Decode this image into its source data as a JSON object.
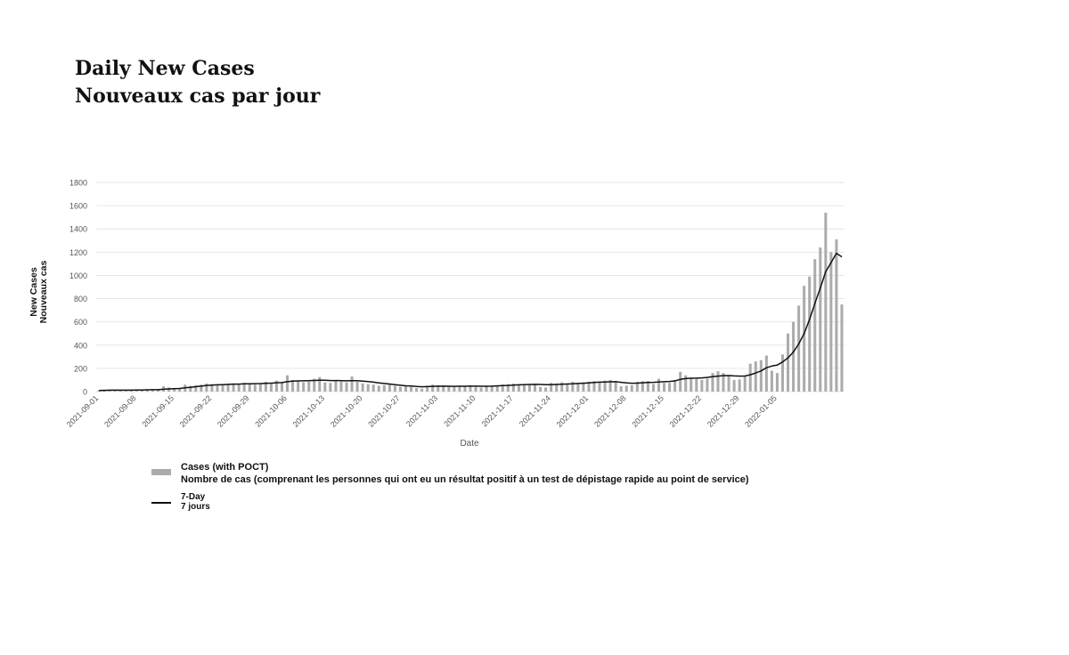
{
  "page": {
    "title_en": "Daily New Cases",
    "title_fr": "Nouveaux cas par jour"
  },
  "legend": {
    "cases_label_en": "Cases (with POCT)",
    "cases_label_fr": "Nombre de cas (comprenant les personnes qui ont eu un résultat positif à un test de dépistage rapide au point de service)",
    "avg_label_en": "7-Day",
    "avg_label_fr": "7 jours"
  },
  "colors": {
    "bars": "#ababab",
    "line": "#111111",
    "grid": "#e6e6e6",
    "text": "#555555"
  },
  "chart_data": {
    "type": "bar",
    "title": "Daily New Cases / Nouveaux cas par jour",
    "xlabel": "Date",
    "ylabel": [
      "New Cases",
      "Nouveaux cas"
    ],
    "ylim": [
      0,
      1800
    ],
    "yticks": [
      0,
      200,
      400,
      600,
      800,
      1000,
      1200,
      1400,
      1600,
      1800
    ],
    "grid": true,
    "legend_position": "bottom-left",
    "start_date": "2021-09-01",
    "xtick_labels": [
      "2021-09-01",
      "2021-09-08",
      "2021-09-15",
      "2021-09-22",
      "2021-09-29",
      "2021-10-06",
      "2021-10-13",
      "2021-10-20",
      "2021-10-27",
      "2021-11-03",
      "2021-11-10",
      "2021-11-17",
      "2021-11-24",
      "2021-12-01",
      "2021-12-08",
      "2021-12-15",
      "2021-12-22",
      "2021-12-29",
      "2022-01-05"
    ],
    "series": [
      {
        "name": "Cases (with POCT)",
        "type": "bar",
        "values": [
          10,
          12,
          15,
          10,
          14,
          12,
          10,
          15,
          18,
          12,
          20,
          22,
          45,
          35,
          30,
          28,
          60,
          50,
          55,
          60,
          70,
          65,
          60,
          55,
          65,
          70,
          60,
          75,
          70,
          60,
          70,
          85,
          75,
          95,
          80,
          140,
          100,
          90,
          80,
          85,
          110,
          125,
          80,
          75,
          90,
          85,
          80,
          130,
          85,
          70,
          65,
          60,
          50,
          55,
          60,
          50,
          40,
          45,
          40,
          30,
          25,
          50,
          60,
          55,
          50,
          45,
          40,
          50,
          45,
          55,
          40,
          35,
          45,
          50,
          55,
          60,
          65,
          70,
          60,
          55,
          65,
          60,
          40,
          35,
          75,
          70,
          80,
          70,
          85,
          75,
          80,
          85,
          90,
          85,
          95,
          100,
          90,
          45,
          50,
          55,
          85,
          90,
          90,
          65,
          110,
          75,
          75,
          100,
          170,
          140,
          120,
          110,
          100,
          110,
          160,
          175,
          160,
          130,
          100,
          105,
          130,
          240,
          260,
          270,
          310,
          180,
          160,
          320,
          500,
          600,
          740,
          910,
          990,
          1140,
          1240,
          1540,
          1200,
          1310,
          750
        ]
      },
      {
        "name": "7-Day",
        "type": "line",
        "values": [
          10,
          11,
          12,
          12,
          12,
          12,
          12,
          13,
          14,
          15,
          16,
          16,
          20,
          23,
          25,
          27,
          32,
          37,
          42,
          47,
          53,
          56,
          58,
          60,
          62,
          64,
          64,
          67,
          67,
          68,
          69,
          71,
          73,
          76,
          77,
          85,
          90,
          92,
          93,
          94,
          96,
          98,
          98,
          95,
          95,
          94,
          93,
          94,
          94,
          90,
          86,
          81,
          75,
          70,
          65,
          60,
          54,
          50,
          48,
          44,
          41,
          43,
          45,
          46,
          47,
          46,
          45,
          46,
          46,
          47,
          47,
          46,
          46,
          47,
          49,
          51,
          53,
          56,
          58,
          60,
          61,
          62,
          61,
          60,
          60,
          61,
          63,
          65,
          67,
          70,
          72,
          75,
          78,
          81,
          83,
          84,
          85,
          80,
          75,
          72,
          73,
          76,
          79,
          80,
          82,
          85,
          87,
          92,
          105,
          112,
          115,
          116,
          118,
          122,
          128,
          133,
          137,
          138,
          135,
          133,
          134,
          145,
          160,
          178,
          205,
          220,
          228,
          255,
          290,
          340,
          410,
          500,
          620,
          760,
          890,
          1030,
          1110,
          1190,
          1160
        ]
      }
    ]
  }
}
